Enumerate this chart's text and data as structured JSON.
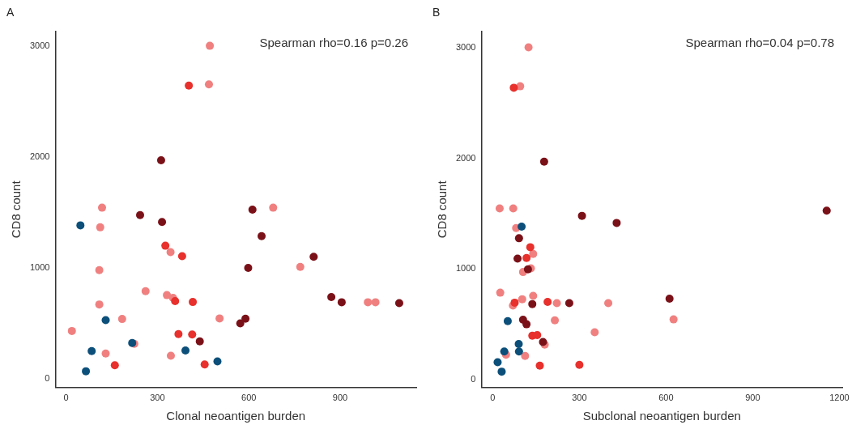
{
  "chart_data": [
    {
      "type": "scatter",
      "title": "A",
      "xlabel": "Clonal neoantigen burden",
      "ylabel": "CD8 count",
      "annotations": [
        "Spearman rho=0.16 p=0.26"
      ],
      "xlim": [
        -35,
        1150
      ],
      "ylim": [
        -80,
        3130
      ],
      "xticks": [
        0,
        300,
        600,
        900
      ],
      "yticks": [
        0,
        1000,
        2000,
        3000
      ],
      "marker": "circle",
      "series": [
        {
          "color": "#f08080",
          "x": [
            472,
            469,
            118,
            680,
            112,
            343,
            109,
            769,
            261,
            331,
            351,
            109,
            991,
            1016,
            184,
            504,
            19,
            224,
            130,
            344
          ],
          "values": [
            3000,
            2652,
            1541,
            1541,
            1364,
            1141,
            978,
            1007,
            788,
            753,
            728,
            669,
            689,
            689,
            538,
            543,
            430,
            314,
            227,
            207
          ]
        },
        {
          "color": "#e8302c",
          "x": [
            403,
            326,
            381,
            358,
            416,
            369,
            414,
            160,
            455
          ],
          "values": [
            2642,
            1198,
            1104,
            699,
            691,
            402,
            398,
            121,
            128
          ]
        },
        {
          "color": "#7b1118",
          "x": [
            312,
            243,
            315,
            612,
            642,
            813,
            598,
            871,
            905,
            1094,
            589,
            572,
            439
          ],
          "values": [
            1968,
            1474,
            1412,
            1523,
            1284,
            1099,
            998,
            736,
            689,
            681,
            541,
            499,
            336
          ]
        },
        {
          "color": "#0b4f7a",
          "x": [
            47,
            130,
            217,
            84,
            392,
            497,
            65
          ],
          "values": [
            1382,
            528,
            321,
            249,
            254,
            156,
            67
          ]
        }
      ]
    },
    {
      "type": "scatter",
      "title": "B",
      "xlabel": "Subclonal neoantigen burden",
      "ylabel": "CD8 count",
      "annotations": [
        "Spearman rho=0.04 p=0.78"
      ],
      "xlim": [
        -39,
        1210
      ],
      "ylim": [
        -75,
        3150
      ],
      "xticks": [
        0,
        300,
        600,
        900,
        1200
      ],
      "yticks": [
        0,
        1000,
        2000,
        3000
      ],
      "marker": "circle",
      "series": [
        {
          "color": "#f08080",
          "x": [
            124,
            95,
            24,
            71,
            81,
            140,
            132,
            105,
            26,
            102,
            140,
            70,
            222,
            400,
            215,
            626,
            353,
            180,
            46,
            112
          ],
          "values": [
            3005,
            2653,
            1547,
            1547,
            1369,
            1135,
            1005,
            971,
            784,
            725,
            755,
            667,
            689,
            689,
            534,
            542,
            426,
            314,
            223,
            211
          ]
        },
        {
          "color": "#e8302c",
          "x": [
            73,
            130,
            117,
            76,
            190,
            137,
            154,
            163,
            300
          ],
          "values": [
            2640,
            1196,
            1098,
            694,
            701,
            395,
            400,
            123,
            130
          ]
        },
        {
          "color": "#7b1118",
          "x": [
            178,
            309,
            429,
            1156,
            91,
            86,
            122,
            137,
            265,
            612,
            105,
            117,
            174
          ],
          "values": [
            1970,
            1480,
            1416,
            1527,
            1277,
            1093,
            995,
            681,
            689,
            730,
            539,
            498,
            338
          ]
        },
        {
          "color": "#0b4f7a",
          "x": [
            100,
            52,
            90,
            40,
            91,
            17,
            31
          ],
          "values": [
            1382,
            527,
            319,
            252,
            252,
            154,
            69
          ]
        }
      ]
    }
  ]
}
